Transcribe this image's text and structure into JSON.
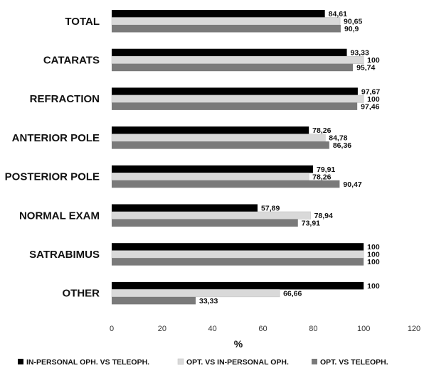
{
  "chart_data": {
    "type": "bar",
    "orientation": "horizontal",
    "categories": [
      "TOTAL",
      "CATARATS",
      "REFRACTION",
      "ANTERIOR POLE",
      "POSTERIOR POLE",
      "NORMAL EXAM",
      "SATRABIMUS",
      "OTHER"
    ],
    "series": [
      {
        "name": "IN-PERSONAL OPH. VS TELEOPH.",
        "color": "#000000",
        "values": [
          84.61,
          93.33,
          97.67,
          78.26,
          79.91,
          57.89,
          100,
          100
        ],
        "labels": [
          "84,61",
          "93,33",
          "97,67",
          "78,26",
          "79,91",
          "57,89",
          "100",
          "100"
        ]
      },
      {
        "name": "OPT. VS IN-PERSONAL OPH.",
        "color": "#d9d9d9",
        "values": [
          90.65,
          100,
          100,
          84.78,
          78.26,
          78.94,
          100,
          66.66
        ],
        "labels": [
          "90,65",
          "100",
          "100",
          "84,78",
          "78,26",
          "78,94",
          "100",
          "66,66"
        ]
      },
      {
        "name": "OPT. VS TELEOPH.",
        "color": "#7a7a7a",
        "values": [
          90.9,
          95.74,
          97.46,
          86.36,
          90.47,
          73.91,
          100,
          33.33
        ],
        "labels": [
          "90,9",
          "95,74",
          "97,46",
          "86,36",
          "90,47",
          "73,91",
          "100",
          "33,33"
        ]
      }
    ],
    "xlabel": "%",
    "ylabel": "",
    "xlim": [
      0,
      120
    ],
    "xticks": [
      "0",
      "20",
      "40",
      "60",
      "80",
      "100",
      "120"
    ],
    "grid": false,
    "legend_position": "bottom"
  }
}
